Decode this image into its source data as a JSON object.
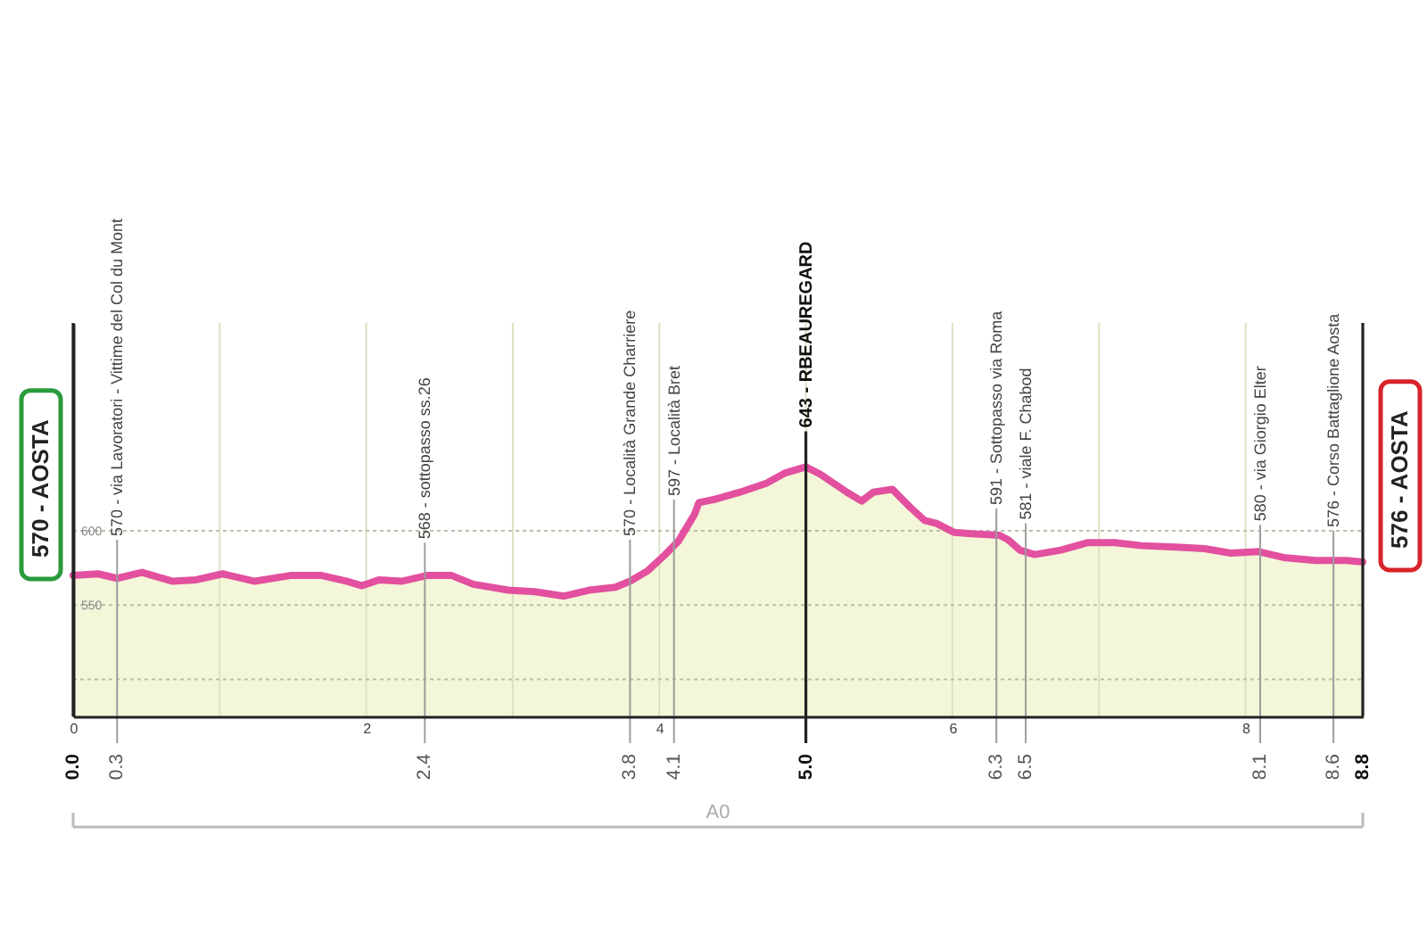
{
  "chart_data": {
    "type": "area",
    "xlim": [
      0,
      8.8
    ],
    "xticks": [
      0,
      {
        "value": 1,
        "label": null
      },
      2,
      {
        "value": 3,
        "label": null
      },
      4,
      {
        "value": 5,
        "label": null
      },
      6,
      {
        "value": 7,
        "label": null
      },
      8
    ],
    "ylim": [
      475,
      740
    ],
    "yticks": [
      {
        "value": 500,
        "label": null
      },
      550,
      600
    ],
    "grid": true,
    "x": [
      0,
      0.17,
      0.3,
      0.47,
      0.68,
      0.84,
      1.02,
      1.24,
      1.49,
      1.69,
      1.87,
      1.97,
      2.09,
      2.24,
      2.42,
      2.58,
      2.73,
      2.97,
      3.15,
      3.35,
      3.52,
      3.7,
      3.8,
      3.92,
      4.04,
      4.13,
      4.24,
      4.27,
      4.37,
      4.55,
      4.73,
      4.86,
      5.0,
      5.1,
      5.28,
      5.38,
      5.46,
      5.59,
      5.71,
      5.81,
      5.89,
      6.01,
      6.13,
      6.32,
      6.38,
      6.46,
      6.56,
      6.74,
      6.92,
      7.11,
      7.29,
      7.53,
      7.72,
      7.9,
      8.09,
      8.26,
      8.48,
      8.69,
      8.8
    ],
    "series": [
      {
        "color": "#e2509f",
        "values": [
          570,
          571,
          568,
          572,
          566,
          567,
          571,
          566,
          570,
          570,
          566,
          563,
          567,
          566,
          570,
          570,
          564,
          560,
          559,
          556,
          560,
          562,
          566,
          573,
          584,
          593,
          611,
          619,
          621,
          626,
          632,
          639,
          643,
          638,
          626,
          620,
          626,
          628,
          616,
          607,
          605,
          599,
          598,
          597,
          594,
          587,
          584,
          587,
          592,
          592,
          590,
          589,
          588,
          585,
          586,
          582,
          580,
          580,
          579
        ]
      }
    ],
    "annotations": [
      {
        "text": "570 - AOSTA",
        "x": 0,
        "y": 570
      },
      {
        "text": "570 - via Lavoratori - Vittime del Col du Mont",
        "x": 0.3,
        "y": 570
      },
      {
        "text": "568 - sottopasso ss.26",
        "x": 2.4,
        "y": 568
      },
      {
        "text": "570 - Località  Grande Charriere",
        "x": 3.8,
        "y": 570
      },
      {
        "text": "597 - Località Bret",
        "x": 4.1,
        "y": 597
      },
      {
        "text": "643 - RBEAUREGARD",
        "x": 5.0,
        "y": 643
      },
      {
        "text": "591 - Sottopasso via Roma",
        "x": 6.3,
        "y": 591
      },
      {
        "text": "581 - viale F. Chabod",
        "x": 6.5,
        "y": 581
      },
      {
        "text": "580 - via Giorgio Elter",
        "x": 8.1,
        "y": 580
      },
      {
        "text": "576 - Corso Battaglione Aosta",
        "x": 8.6,
        "y": 576
      },
      {
        "text": "576 - AOSTA",
        "x": 8.8,
        "y": 576
      },
      "A0"
    ],
    "ref_lines": [
      {
        "axis": "x",
        "value": 0,
        "label": "0.0",
        "color": "#222222"
      },
      {
        "axis": "x",
        "value": 0.3,
        "label": "0.3",
        "color": "#9c9c9c"
      },
      {
        "axis": "x",
        "value": 2.4,
        "label": "2.4",
        "color": "#9c9c9c"
      },
      {
        "axis": "x",
        "value": 3.8,
        "label": "3.8",
        "color": "#9c9c9c"
      },
      {
        "axis": "x",
        "value": 4.1,
        "label": "4.1",
        "color": "#9c9c9c"
      },
      {
        "axis": "x",
        "value": 5.0,
        "label": "5.0",
        "color": "#222222"
      },
      {
        "axis": "x",
        "value": 6.3,
        "label": "6.3",
        "color": "#9c9c9c"
      },
      {
        "axis": "x",
        "value": 6.5,
        "label": "6.5",
        "color": "#9c9c9c"
      },
      {
        "axis": "x",
        "value": 8.1,
        "label": "8.1",
        "color": "#9c9c9c"
      },
      {
        "axis": "x",
        "value": 8.6,
        "label": "8.6",
        "color": "#9c9c9c"
      },
      {
        "axis": "x",
        "value": 8.8,
        "label": "8.8",
        "color": "#222222"
      }
    ]
  }
}
